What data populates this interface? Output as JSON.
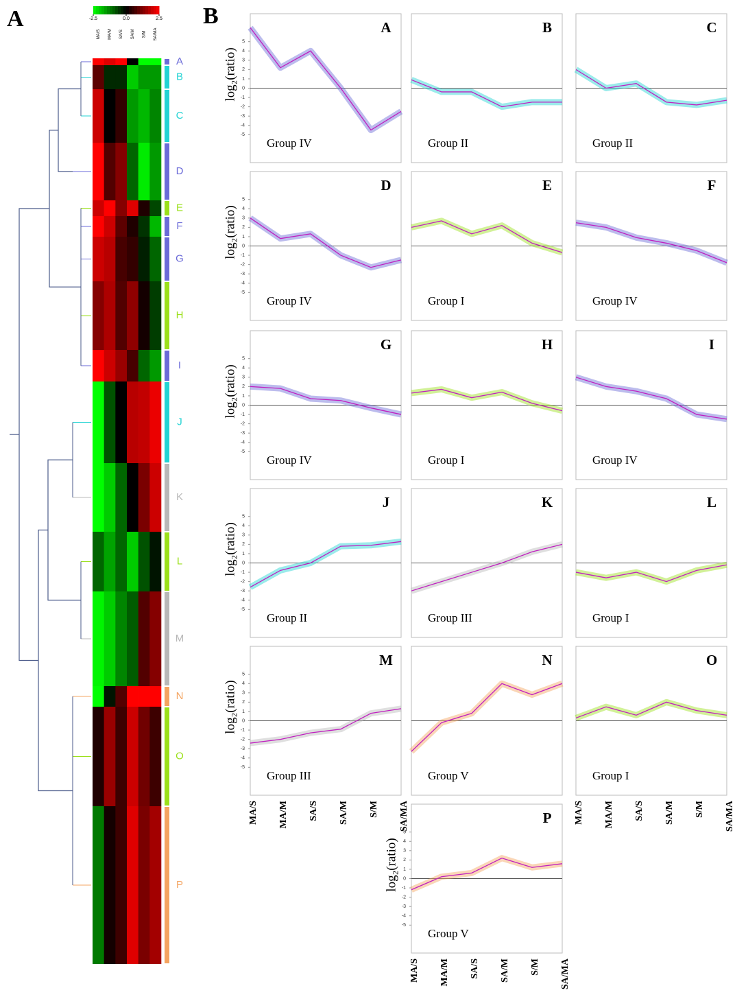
{
  "figure": {
    "panel_a": "A",
    "panel_b": "B"
  },
  "heatmap": {
    "colorbar_ticks": [
      -2.5,
      {
        "value": 0,
        "label": "0.0"
      },
      2.5
    ]
  },
  "columns": [
    "MA/S",
    "MA/M",
    "SA/S",
    "SA/M",
    "S/M",
    "SA/MA"
  ],
  "chart_data": [
    {
      "type": "line",
      "title": "A",
      "group": "Group IV",
      "y_label": "log₂(ratio)",
      "color": "#6a6ad8",
      "values": [
        6.5,
        2.2,
        4,
        0,
        -4.5,
        -2.5
      ],
      "ylim": [
        -8,
        8
      ],
      "yticks": [
        -5,
        -4,
        -3,
        -2,
        -1,
        0,
        1,
        2,
        3,
        4,
        5
      ]
    },
    {
      "type": "line",
      "title": "B",
      "group": "Group II",
      "color": "#22d3d3",
      "values": [
        0.9,
        -0.4,
        -0.4,
        -2,
        -1.5,
        -1.5
      ],
      "ylim": [
        -8,
        8
      ]
    },
    {
      "type": "line",
      "title": "C",
      "group": "Group II",
      "color": "#22d3d3",
      "values": [
        2,
        0,
        0.5,
        -1.5,
        -1.8,
        -1.3
      ],
      "ylim": [
        -8,
        8
      ]
    },
    {
      "type": "line",
      "title": "D",
      "group": "Group IV",
      "y_label": "log₂(ratio)",
      "color": "#6a6ad8",
      "values": [
        3,
        0.8,
        1.3,
        -1,
        -2.3,
        -1.5
      ],
      "ylim": [
        -8,
        8
      ],
      "yticks": [
        -5,
        -4,
        -3,
        -2,
        -1,
        0,
        1,
        2,
        3,
        4,
        5
      ]
    },
    {
      "type": "line",
      "title": "E",
      "group": "Group I",
      "color": "#9be01a",
      "values": [
        2,
        2.7,
        1.3,
        2.2,
        0.3,
        -0.7
      ],
      "ylim": [
        -8,
        8
      ]
    },
    {
      "type": "line",
      "title": "F",
      "group": "Group IV",
      "color": "#6a6ad8",
      "values": [
        2.5,
        2,
        0.9,
        0.3,
        -0.5,
        -1.8
      ],
      "ylim": [
        -8,
        8
      ]
    },
    {
      "type": "line",
      "title": "G",
      "group": "Group IV",
      "y_label": "log₂(ratio)",
      "color": "#6a6ad8",
      "values": [
        2,
        1.8,
        0.7,
        0.5,
        -0.3,
        -1
      ],
      "ylim": [
        -8,
        8
      ],
      "yticks": [
        -5,
        -4,
        -3,
        -2,
        -1,
        0,
        1,
        2,
        3,
        4,
        5
      ]
    },
    {
      "type": "line",
      "title": "H",
      "group": "Group I",
      "color": "#9be01a",
      "values": [
        1.3,
        1.7,
        0.8,
        1.4,
        0.2,
        -0.6
      ],
      "ylim": [
        -8,
        8
      ]
    },
    {
      "type": "line",
      "title": "I",
      "group": "Group IV",
      "color": "#6a6ad8",
      "values": [
        3,
        2,
        1.5,
        0.7,
        -1,
        -1.5
      ],
      "ylim": [
        -8,
        8
      ]
    },
    {
      "type": "line",
      "title": "J",
      "group": "Group II",
      "y_label": "log₂(ratio)",
      "color": "#22d3d3",
      "values": [
        -2.6,
        -0.8,
        0,
        1.8,
        1.9,
        2.3
      ],
      "ylim": [
        -8,
        8
      ],
      "yticks": [
        -5,
        -4,
        -3,
        -2,
        -1,
        0,
        1,
        2,
        3,
        4,
        5
      ]
    },
    {
      "type": "line",
      "title": "K",
      "group": "Group III",
      "color": "#b8b8b8",
      "values": [
        -3,
        -2,
        -1,
        0,
        1.2,
        2
      ],
      "ylim": [
        -8,
        8
      ]
    },
    {
      "type": "line",
      "title": "L",
      "group": "Group I",
      "color": "#9be01a",
      "values": [
        -1,
        -1.6,
        -1,
        -2,
        -0.8,
        -0.2
      ],
      "ylim": [
        -8,
        8
      ]
    },
    {
      "type": "line",
      "title": "M",
      "group": "Group III",
      "y_label": "log₂(ratio)",
      "color": "#b8b8b8",
      "values": [
        -2.4,
        -2,
        -1.3,
        -0.9,
        0.8,
        1.3
      ],
      "ylim": [
        -8,
        8
      ],
      "yticks": [
        -5,
        -4,
        -3,
        -2,
        -1,
        0,
        1,
        2,
        3,
        4,
        5
      ]
    },
    {
      "type": "line",
      "title": "N",
      "group": "Group V",
      "color": "#f4a460",
      "values": [
        -3.3,
        -0.2,
        0.8,
        4,
        2.8,
        4
      ],
      "ylim": [
        -8,
        8
      ]
    },
    {
      "type": "line",
      "title": "O",
      "group": "Group I",
      "color": "#9be01a",
      "values": [
        0.3,
        1.5,
        0.6,
        2,
        1.1,
        0.6
      ],
      "ylim": [
        -8,
        8
      ]
    },
    {
      "type": "line",
      "title": "P",
      "group": "Group V",
      "y_label": "log₂(ratio)",
      "color": "#f4a460",
      "values": [
        -1.2,
        0.2,
        0.6,
        2.2,
        1.2,
        1.6
      ],
      "ylim": [
        -8,
        8
      ],
      "yticks": [
        -5,
        -4,
        -3,
        -2,
        -1,
        0,
        1,
        2,
        3,
        4,
        5
      ]
    }
  ]
}
